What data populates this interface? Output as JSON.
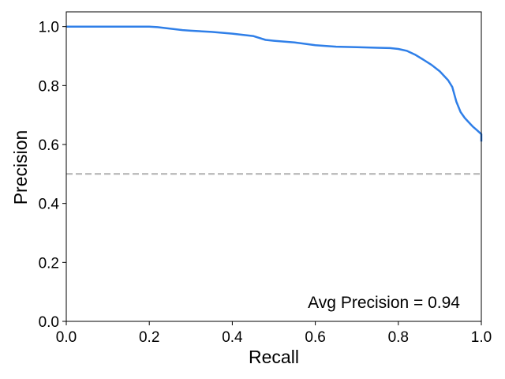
{
  "chart_data": {
    "type": "line",
    "title": "",
    "xlabel": "Recall",
    "ylabel": "Precision",
    "xlim": [
      0.0,
      1.0
    ],
    "ylim": [
      0.0,
      1.05
    ],
    "xticks": [
      "0.0",
      "0.2",
      "0.4",
      "0.6",
      "0.8",
      "1.0"
    ],
    "yticks": [
      "0.0",
      "0.2",
      "0.4",
      "0.6",
      "0.8",
      "1.0"
    ],
    "grid": false,
    "legend": "none",
    "series": [
      {
        "color": "#2f7fe8",
        "style": "solid",
        "x": [
          0.0,
          0.05,
          0.1,
          0.15,
          0.2,
          0.22,
          0.25,
          0.28,
          0.3,
          0.35,
          0.4,
          0.45,
          0.48,
          0.5,
          0.55,
          0.6,
          0.65,
          0.7,
          0.75,
          0.78,
          0.8,
          0.82,
          0.84,
          0.86,
          0.88,
          0.9,
          0.92,
          0.93,
          0.94,
          0.95,
          0.96,
          0.97,
          0.98,
          0.99,
          1.0,
          1.0
        ],
        "y": [
          1.0,
          1.0,
          1.0,
          1.0,
          1.0,
          0.998,
          0.993,
          0.988,
          0.986,
          0.982,
          0.976,
          0.968,
          0.955,
          0.952,
          0.946,
          0.937,
          0.932,
          0.93,
          0.928,
          0.927,
          0.924,
          0.918,
          0.905,
          0.888,
          0.87,
          0.848,
          0.818,
          0.795,
          0.745,
          0.71,
          0.69,
          0.675,
          0.66,
          0.648,
          0.635,
          0.61
        ]
      },
      {
        "color": "#b0b0b0",
        "style": "dashed",
        "x": [
          0.0,
          1.0
        ],
        "y": [
          0.5,
          0.5
        ]
      }
    ],
    "annotation": "Avg Precision = 0.94"
  }
}
